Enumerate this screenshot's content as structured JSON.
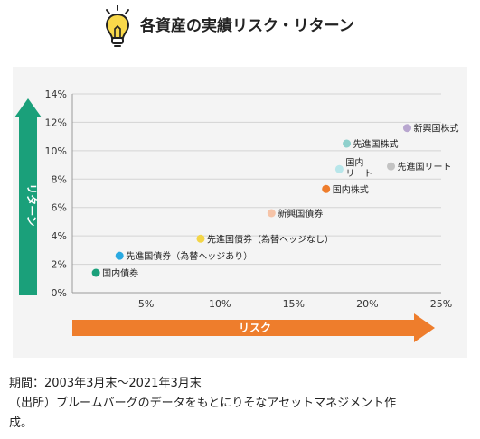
{
  "header": {
    "title": "各資産の実績リスク・リターン",
    "icon": "lightbulb-icon"
  },
  "chart_data": {
    "type": "scatter",
    "xlabel": "リスク",
    "ylabel": "リターン",
    "xlim": [
      0,
      25
    ],
    "ylim": [
      0,
      14
    ],
    "x_ticks": [
      {
        "value": 5,
        "label": "5%"
      },
      {
        "value": 10,
        "label": "10%"
      },
      {
        "value": 15,
        "label": "15%"
      },
      {
        "value": 20,
        "label": "20%"
      },
      {
        "value": 25,
        "label": "25%"
      }
    ],
    "y_ticks": [
      {
        "value": 0,
        "label": "0%"
      },
      {
        "value": 2,
        "label": "2%"
      },
      {
        "value": 4,
        "label": "4%"
      },
      {
        "value": 6,
        "label": "6%"
      },
      {
        "value": 8,
        "label": "8%"
      },
      {
        "value": 10,
        "label": "10%"
      },
      {
        "value": 12,
        "label": "12%"
      },
      {
        "value": 14,
        "label": "14%"
      }
    ],
    "grid": "horizontal",
    "points": [
      {
        "label": "国内債券",
        "x": 1.6,
        "y": 1.4,
        "color": "#1aa07a"
      },
      {
        "label": "先進国債券（為替ヘッジあり）",
        "x": 3.2,
        "y": 2.6,
        "color": "#29a9e1"
      },
      {
        "label": "先進国債券（為替ヘッジなし）",
        "x": 8.7,
        "y": 3.8,
        "color": "#f3d547"
      },
      {
        "label": "新興国債券",
        "x": 13.5,
        "y": 5.6,
        "color": "#f6c4a8"
      },
      {
        "label": "国内株式",
        "x": 17.2,
        "y": 7.3,
        "color": "#ee7d2c"
      },
      {
        "label": "国内リート",
        "x": 18.1,
        "y": 8.7,
        "color": "#b8e6ea",
        "label_lines": [
          "国内",
          "リート"
        ]
      },
      {
        "label": "先進国株式",
        "x": 18.6,
        "y": 10.5,
        "color": "#8fd0cc"
      },
      {
        "label": "先進国リート",
        "x": 21.6,
        "y": 8.9,
        "color": "#c3c3c3"
      },
      {
        "label": "新興国株式",
        "x": 22.7,
        "y": 11.6,
        "color": "#b8a6cf"
      }
    ],
    "colors": {
      "y_arrow": "#1aa07a",
      "x_arrow": "#ee7d2c",
      "grid": "#d3d3d3",
      "axis": "#9a9a9a"
    }
  },
  "footer": {
    "period": "期間：2003年3月末～2021年3月末",
    "source_line1": "（出所）ブルームバーグのデータをもとにりそなアセットマネジメント作",
    "source_line2": "成。"
  }
}
